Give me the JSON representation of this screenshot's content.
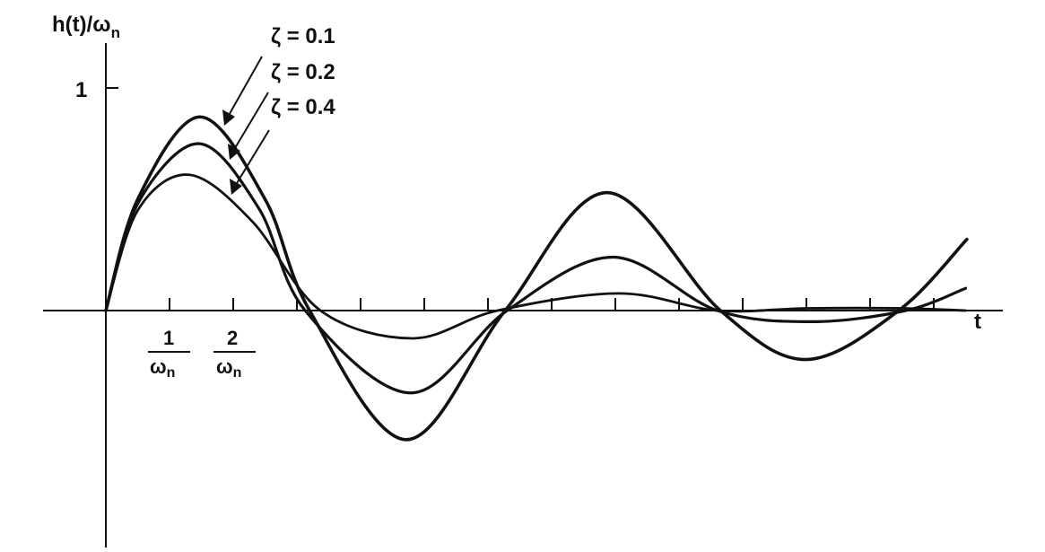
{
  "chart_data": {
    "type": "line",
    "ylabel": "h(t)/ω",
    "ylabel_sub": "n",
    "xlabel": "t",
    "y_ticks": [
      {
        "value": 1,
        "label": "1"
      }
    ],
    "x_ticks": [
      {
        "value": 1,
        "num": "1",
        "den": "ω",
        "den_sub": "n"
      },
      {
        "value": 2,
        "num": "2",
        "den": "ω",
        "den_sub": "n"
      },
      {
        "value": 3
      },
      {
        "value": 4
      },
      {
        "value": 5
      },
      {
        "value": 6
      },
      {
        "value": 7
      },
      {
        "value": 8
      },
      {
        "value": 9
      },
      {
        "value": 10
      },
      {
        "value": 11
      },
      {
        "value": 12
      },
      {
        "value": 13
      }
    ],
    "xlim": [
      -1,
      14.1
    ],
    "ylim": [
      -1.06,
      1.2
    ],
    "grid": false,
    "color": "#111111",
    "series": [
      {
        "name": "ζ = 0.1",
        "points": [
          [
            0,
            0
          ],
          [
            0.5,
            0.5
          ],
          [
            1.48,
            0.87
          ],
          [
            2.5,
            0.5
          ],
          [
            3.2,
            0
          ],
          [
            4.72,
            -0.58
          ],
          [
            6.27,
            0
          ],
          [
            7.87,
            0.53
          ],
          [
            9.65,
            0
          ],
          [
            10.99,
            -0.22
          ],
          [
            12.45,
            0
          ],
          [
            13.52,
            0.32
          ]
        ]
      },
      {
        "name": "ζ = 0.2",
        "points": [
          [
            0,
            0
          ],
          [
            0.5,
            0.48
          ],
          [
            1.46,
            0.75
          ],
          [
            2.4,
            0.46
          ],
          [
            3.13,
            0
          ],
          [
            4.79,
            -0.37
          ],
          [
            6.3,
            0
          ],
          [
            7.96,
            0.24
          ],
          [
            9.6,
            0
          ],
          [
            11.08,
            -0.05
          ],
          [
            12.56,
            0
          ],
          [
            13.5,
            0.1
          ]
        ]
      },
      {
        "name": "ζ = 0.4",
        "points": [
          [
            0,
            0
          ],
          [
            0.5,
            0.45
          ],
          [
            1.31,
            0.61
          ],
          [
            2.3,
            0.4
          ],
          [
            3.37,
            0
          ],
          [
            4.82,
            -0.125
          ],
          [
            6.15,
            0
          ],
          [
            8.06,
            0.077
          ],
          [
            9.6,
            0
          ],
          [
            11,
            0.01
          ],
          [
            12.5,
            0.01
          ],
          [
            13.5,
            0
          ]
        ]
      }
    ]
  }
}
